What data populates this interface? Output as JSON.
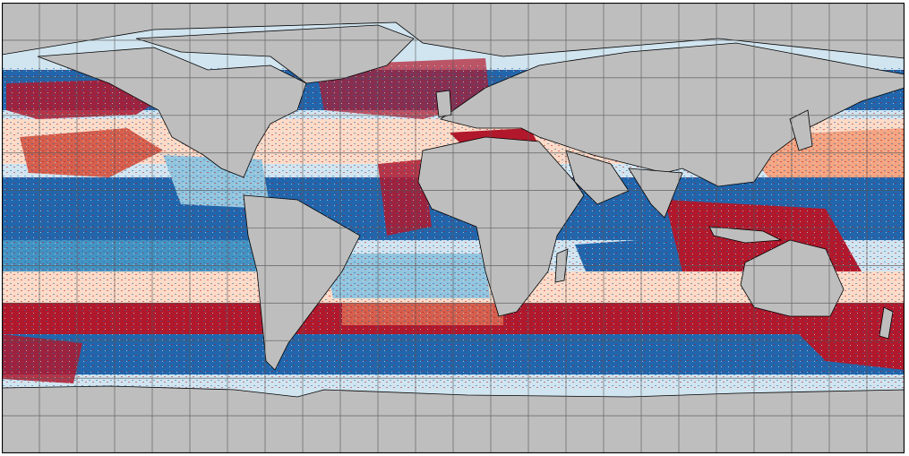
{
  "map": {
    "projection": "equirectangular",
    "lon_range": [
      -180,
      180
    ],
    "lat_range": [
      -90,
      90
    ],
    "graticule_step_deg": 15,
    "land_color": "#bebebe",
    "coastline_color": "#000000",
    "grid_color": "#555555",
    "palette": {
      "strong_positive": "#b2182b",
      "positive": "#d6604d",
      "weak_positive": "#f4a582",
      "slight_positive": "#fddbc7",
      "slight_negative": "#d1e5f0",
      "weak_negative": "#92c5de",
      "negative": "#4393c3",
      "strong_negative": "#2166ac"
    }
  }
}
